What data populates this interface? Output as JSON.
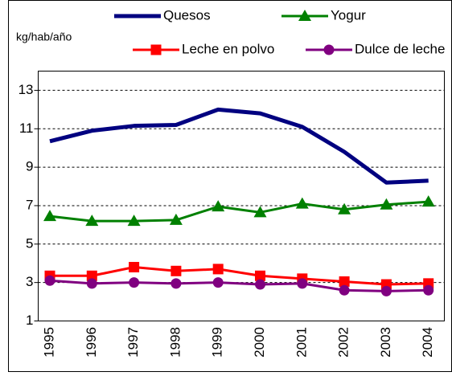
{
  "chart_data": {
    "type": "line",
    "y_label": "kg/hab/año",
    "categories": [
      "1995",
      "1996",
      "1997",
      "1998",
      "1999",
      "2000",
      "2001",
      "2002",
      "2003",
      "2004"
    ],
    "series": [
      {
        "name": "Quesos",
        "color": "#000080",
        "marker": "none",
        "values": [
          10.35,
          10.9,
          11.15,
          11.2,
          12.0,
          11.8,
          11.1,
          9.8,
          8.2,
          8.3
        ]
      },
      {
        "name": "Yogur",
        "color": "#008000",
        "marker": "triangle",
        "values": [
          6.45,
          6.2,
          6.2,
          6.25,
          6.95,
          6.65,
          7.1,
          6.8,
          7.05,
          7.2
        ]
      },
      {
        "name": "Leche en polvo",
        "color": "#ff0000",
        "marker": "square",
        "values": [
          3.35,
          3.35,
          3.8,
          3.6,
          3.7,
          3.35,
          3.2,
          3.05,
          2.9,
          2.95
        ]
      },
      {
        "name": "Dulce de leche",
        "color": "#800080",
        "marker": "circle",
        "values": [
          3.1,
          2.95,
          3.0,
          2.95,
          3.0,
          2.9,
          2.95,
          2.6,
          2.55,
          2.6
        ]
      }
    ],
    "ylim": [
      1,
      14
    ],
    "yticks": [
      1,
      3,
      5,
      7,
      9,
      11,
      13
    ],
    "grid": true
  }
}
